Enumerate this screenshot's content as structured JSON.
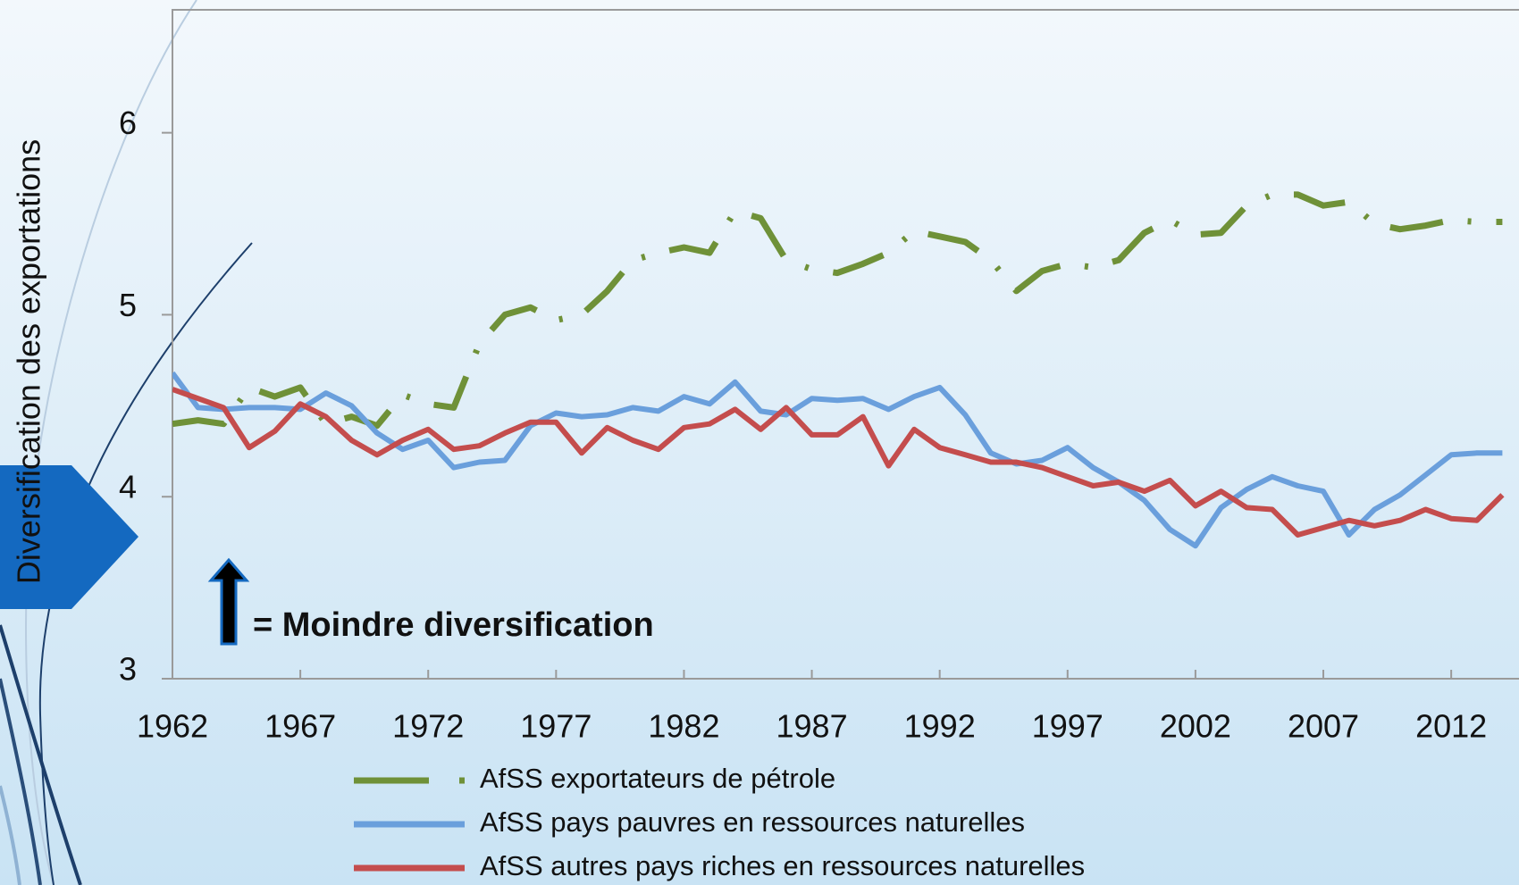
{
  "chart_data": {
    "type": "line",
    "y_label": "Diversification des exportations",
    "annotation": "= Moindre diversification",
    "x": [
      1962,
      1963,
      1964,
      1965,
      1966,
      1967,
      1968,
      1969,
      1970,
      1971,
      1972,
      1973,
      1974,
      1975,
      1976,
      1977,
      1978,
      1979,
      1980,
      1981,
      1982,
      1983,
      1984,
      1985,
      1986,
      1987,
      1988,
      1989,
      1990,
      1991,
      1992,
      1993,
      1994,
      1995,
      1996,
      1997,
      1998,
      1999,
      2000,
      2001,
      2002,
      2003,
      2004,
      2005,
      2006,
      2007,
      2008,
      2009,
      2010,
      2011,
      2012,
      2013,
      2014
    ],
    "xlim": [
      1962,
      2015
    ],
    "xticks": [
      1962,
      1967,
      1972,
      1977,
      1982,
      1987,
      1992,
      1997,
      2002,
      2007,
      2012
    ],
    "ylim": [
      3,
      6.7
    ],
    "yticks": [
      3,
      4,
      5,
      6
    ],
    "series": [
      {
        "name": "AfSS exportateurs de pétrole",
        "color": "#6f9138",
        "dash": true,
        "values": [
          4.4,
          4.42,
          4.4,
          4.6,
          4.55,
          4.6,
          4.4,
          4.44,
          4.39,
          4.56,
          4.51,
          4.49,
          4.84,
          5.0,
          5.04,
          4.97,
          5.0,
          5.13,
          5.3,
          5.34,
          5.37,
          5.34,
          5.57,
          5.53,
          5.3,
          5.25,
          5.23,
          5.28,
          5.34,
          5.46,
          5.43,
          5.4,
          5.3,
          5.13,
          5.24,
          5.28,
          5.26,
          5.3,
          5.45,
          5.52,
          5.44,
          5.45,
          5.6,
          5.66,
          5.66,
          5.6,
          5.62,
          5.5,
          5.47,
          5.49,
          5.52,
          5.51,
          5.51
        ]
      },
      {
        "name": "AfSS pays pauvres en ressources naturelles",
        "color": "#6a9fdc",
        "dash": false,
        "values": [
          4.68,
          4.49,
          4.48,
          4.49,
          4.49,
          4.48,
          4.57,
          4.5,
          4.35,
          4.26,
          4.31,
          4.16,
          4.19,
          4.2,
          4.39,
          4.46,
          4.44,
          4.45,
          4.49,
          4.47,
          4.55,
          4.51,
          4.63,
          4.47,
          4.45,
          4.54,
          4.53,
          4.54,
          4.48,
          4.55,
          4.6,
          4.45,
          4.24,
          4.18,
          4.2,
          4.27,
          4.16,
          4.08,
          3.98,
          3.82,
          3.73,
          3.94,
          4.04,
          4.11,
          4.06,
          4.03,
          3.79,
          3.93,
          4.01,
          4.12,
          4.23,
          4.24,
          4.24
        ]
      },
      {
        "name": "AfSS autres pays riches en ressources naturelles",
        "color": "#c44d4d",
        "dash": false,
        "values": [
          4.59,
          4.54,
          4.49,
          4.27,
          4.36,
          4.51,
          4.44,
          4.31,
          4.23,
          4.31,
          4.37,
          4.26,
          4.28,
          4.35,
          4.41,
          4.41,
          4.24,
          4.38,
          4.31,
          4.26,
          4.38,
          4.4,
          4.48,
          4.37,
          4.49,
          4.34,
          4.34,
          4.44,
          4.17,
          4.37,
          4.27,
          4.23,
          4.19,
          4.19,
          4.16,
          4.11,
          4.06,
          4.08,
          4.03,
          4.09,
          3.95,
          4.03,
          3.94,
          3.93,
          3.79,
          3.83,
          3.87,
          3.84,
          3.87,
          3.93,
          3.88,
          3.87,
          4.01
        ]
      }
    ]
  }
}
